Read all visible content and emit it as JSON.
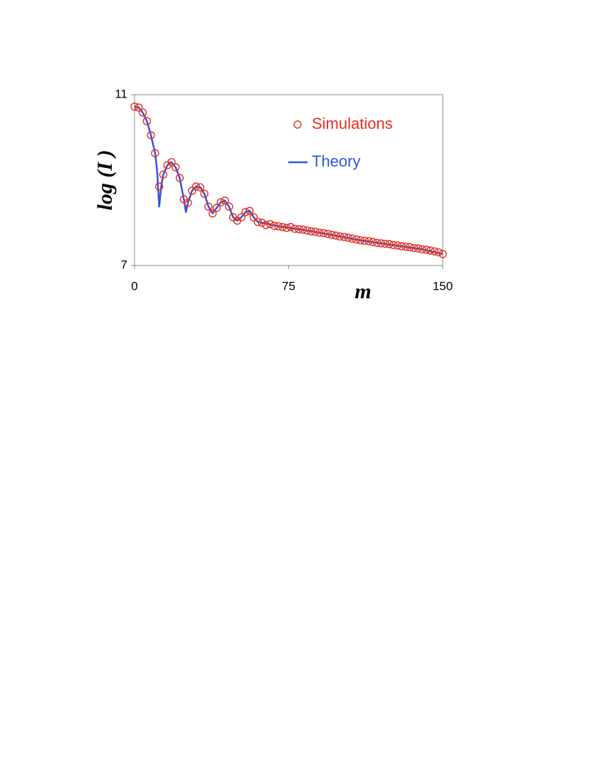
{
  "chart_data": {
    "type": "scatter-line",
    "xlabel": "m",
    "ylabel": "log (I )",
    "xlim": [
      0,
      150
    ],
    "xticks": [
      0,
      75,
      150
    ],
    "ylim": [
      7,
      11
    ],
    "yticks": [
      7,
      11
    ],
    "legend": "top-right",
    "series": [
      {
        "name": "Simulations",
        "color": "#e8301c",
        "marker": "circle",
        "x": [
          0,
          2,
          4,
          6,
          8,
          10,
          12,
          14,
          16,
          18,
          20,
          22,
          24,
          26,
          28,
          30,
          32,
          34,
          36,
          38,
          40,
          42,
          44,
          46,
          48,
          50,
          52,
          54,
          56,
          58,
          60,
          62,
          64,
          66,
          68,
          70,
          72,
          74,
          76,
          78,
          80,
          82,
          84,
          86,
          88,
          90,
          92,
          94,
          96,
          98,
          100,
          102,
          104,
          106,
          108,
          110,
          112,
          114,
          116,
          118,
          120,
          122,
          124,
          126,
          128,
          130,
          132,
          134,
          136,
          138,
          140,
          142,
          144,
          146,
          148,
          150
        ],
        "values": [
          10.72,
          10.7,
          10.58,
          10.38,
          10.05,
          9.63,
          8.85,
          9.13,
          9.35,
          9.42,
          9.3,
          9.05,
          8.55,
          8.47,
          8.75,
          8.85,
          8.83,
          8.68,
          8.38,
          8.22,
          8.35,
          8.48,
          8.52,
          8.38,
          8.13,
          8.05,
          8.13,
          8.25,
          8.28,
          8.13,
          8.02,
          8.0,
          7.95,
          7.97,
          7.93,
          7.92,
          7.9,
          7.88,
          7.9,
          7.86,
          7.85,
          7.84,
          7.82,
          7.8,
          7.79,
          7.77,
          7.76,
          7.74,
          7.72,
          7.7,
          7.68,
          7.67,
          7.65,
          7.63,
          7.61,
          7.59,
          7.58,
          7.57,
          7.55,
          7.53,
          7.52,
          7.51,
          7.5,
          7.48,
          7.47,
          7.45,
          7.44,
          7.43,
          7.41,
          7.4,
          7.38,
          7.37,
          7.35,
          7.33,
          7.31,
          7.27
        ]
      },
      {
        "name": "Theory",
        "color": "#3355dd",
        "marker": "line",
        "x": [
          0,
          2,
          4,
          6,
          8,
          10,
          11,
          12,
          13,
          14,
          16,
          18,
          20,
          22,
          24,
          25,
          26,
          28,
          30,
          32,
          34,
          36,
          38,
          40,
          42,
          44,
          46,
          48,
          50,
          52,
          54,
          56,
          58,
          60,
          70,
          80,
          90,
          100,
          110,
          120,
          130,
          140,
          150
        ],
        "values": [
          10.72,
          10.7,
          10.58,
          10.38,
          10.05,
          9.63,
          9.22,
          8.38,
          8.85,
          9.13,
          9.35,
          9.42,
          9.3,
          9.05,
          8.55,
          8.25,
          8.47,
          8.75,
          8.85,
          8.83,
          8.68,
          8.38,
          8.22,
          8.35,
          8.48,
          8.52,
          8.38,
          8.13,
          8.05,
          8.13,
          8.25,
          8.28,
          8.13,
          8.02,
          7.92,
          7.85,
          7.77,
          7.68,
          7.59,
          7.52,
          7.45,
          7.38,
          7.27
        ]
      }
    ]
  }
}
